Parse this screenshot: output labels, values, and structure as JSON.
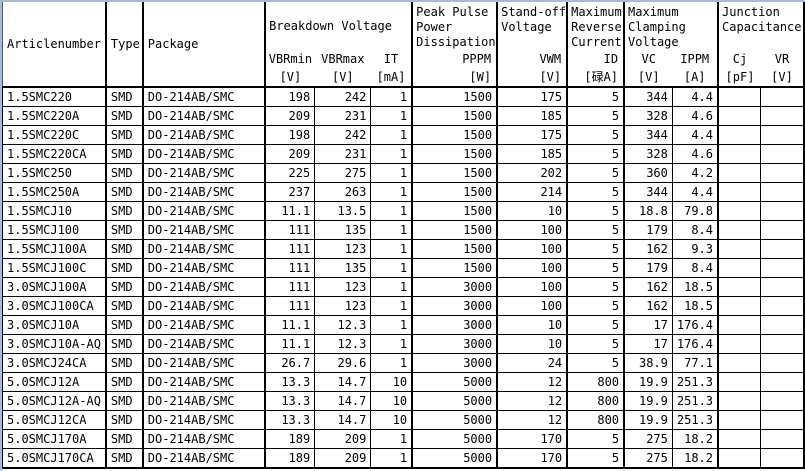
{
  "colors": {
    "table_border": "#000000",
    "sheet_edge_blue": "#a9bad8",
    "background": "#ffffff",
    "text": "#000000"
  },
  "table": {
    "header": {
      "articlenumber": "Articlenumber",
      "type": "Type",
      "package": "Package",
      "groups": [
        {
          "title": "Breakdown Voltage",
          "subs": [
            {
              "label": "VBRmin",
              "unit": "[V]"
            },
            {
              "label": "VBRmax",
              "unit": "[V]"
            },
            {
              "label": "IT",
              "unit": "[mA]"
            }
          ]
        },
        {
          "title": "Peak Pulse Power Dissipation",
          "subs": [
            {
              "label": "PPPM",
              "unit": "[W]"
            }
          ]
        },
        {
          "title": "Stand-off Voltage",
          "subs": [
            {
              "label": "VWM",
              "unit": "[V]"
            }
          ]
        },
        {
          "title": "Maximum Reverse Current",
          "subs": [
            {
              "label": "ID",
              "unit": "[碌A]"
            }
          ]
        },
        {
          "title": "Maximum Clamping Voltage",
          "subs": [
            {
              "label": "VC",
              "unit": "[V]"
            },
            {
              "label": "IPPM",
              "unit": "[A]"
            }
          ]
        },
        {
          "title": "Junction Capacitance",
          "subs": [
            {
              "label": "Cj",
              "unit": "[pF]"
            },
            {
              "label": "VR",
              "unit": "[V]"
            }
          ]
        }
      ]
    },
    "rows": [
      [
        "1.5SMC220",
        "SMD",
        "DO-214AB/SMC",
        "198",
        "242",
        "1",
        "1500",
        "175",
        "5",
        "344",
        "4.4",
        "",
        ""
      ],
      [
        "1.5SMC220A",
        "SMD",
        "DO-214AB/SMC",
        "209",
        "231",
        "1",
        "1500",
        "185",
        "5",
        "328",
        "4.6",
        "",
        ""
      ],
      [
        "1.5SMC220C",
        "SMD",
        "DO-214AB/SMC",
        "198",
        "242",
        "1",
        "1500",
        "175",
        "5",
        "344",
        "4.4",
        "",
        ""
      ],
      [
        "1.5SMC220CA",
        "SMD",
        "DO-214AB/SMC",
        "209",
        "231",
        "1",
        "1500",
        "185",
        "5",
        "328",
        "4.6",
        "",
        ""
      ],
      [
        "1.5SMC250",
        "SMD",
        "DO-214AB/SMC",
        "225",
        "275",
        "1",
        "1500",
        "202",
        "5",
        "360",
        "4.2",
        "",
        ""
      ],
      [
        "1.5SMC250A",
        "SMD",
        "DO-214AB/SMC",
        "237",
        "263",
        "1",
        "1500",
        "214",
        "5",
        "344",
        "4.4",
        "",
        ""
      ],
      [
        "1.5SMCJ10",
        "SMD",
        "DO-214AB/SMC",
        "11.1",
        "13.5",
        "1",
        "1500",
        "10",
        "5",
        "18.8",
        "79.8",
        "",
        ""
      ],
      [
        "1.5SMCJ100",
        "SMD",
        "DO-214AB/SMC",
        "111",
        "135",
        "1",
        "1500",
        "100",
        "5",
        "179",
        "8.4",
        "",
        ""
      ],
      [
        "1.5SMCJ100A",
        "SMD",
        "DO-214AB/SMC",
        "111",
        "123",
        "1",
        "1500",
        "100",
        "5",
        "162",
        "9.3",
        "",
        ""
      ],
      [
        "1.5SMCJ100C",
        "SMD",
        "DO-214AB/SMC",
        "111",
        "135",
        "1",
        "1500",
        "100",
        "5",
        "179",
        "8.4",
        "",
        ""
      ],
      [
        "3.0SMCJ100A",
        "SMD",
        "DO-214AB/SMC",
        "111",
        "123",
        "1",
        "3000",
        "100",
        "5",
        "162",
        "18.5",
        "",
        ""
      ],
      [
        "3.0SMCJ100CA",
        "SMD",
        "DO-214AB/SMC",
        "111",
        "123",
        "1",
        "3000",
        "100",
        "5",
        "162",
        "18.5",
        "",
        ""
      ],
      [
        "3.0SMCJ10A",
        "SMD",
        "DO-214AB/SMC",
        "11.1",
        "12.3",
        "1",
        "3000",
        "10",
        "5",
        "17",
        "176.4",
        "",
        ""
      ],
      [
        "3.0SMCJ10A-AQ",
        "SMD",
        "DO-214AB/SMC",
        "11.1",
        "12.3",
        "1",
        "3000",
        "10",
        "5",
        "17",
        "176.4",
        "",
        ""
      ],
      [
        "3.0SMCJ24CA",
        "SMD",
        "DO-214AB/SMC",
        "26.7",
        "29.6",
        "1",
        "3000",
        "24",
        "5",
        "38.9",
        "77.1",
        "",
        ""
      ],
      [
        "5.0SMCJ12A",
        "SMD",
        "DO-214AB/SMC",
        "13.3",
        "14.7",
        "10",
        "5000",
        "12",
        "800",
        "19.9",
        "251.3",
        "",
        ""
      ],
      [
        "5.0SMCJ12A-AQ",
        "SMD",
        "DO-214AB/SMC",
        "13.3",
        "14.7",
        "10",
        "5000",
        "12",
        "800",
        "19.9",
        "251.3",
        "",
        ""
      ],
      [
        "5.0SMCJ12CA",
        "SMD",
        "DO-214AB/SMC",
        "13.3",
        "14.7",
        "10",
        "5000",
        "12",
        "800",
        "19.9",
        "251.3",
        "",
        ""
      ],
      [
        "5.0SMCJ170A",
        "SMD",
        "DO-214AB/SMC",
        "189",
        "209",
        "1",
        "5000",
        "170",
        "5",
        "275",
        "18.2",
        "",
        ""
      ],
      [
        "5.0SMCJ170CA",
        "SMD",
        "DO-214AB/SMC",
        "189",
        "209",
        "1",
        "5000",
        "170",
        "5",
        "275",
        "18.2",
        "",
        ""
      ]
    ]
  }
}
